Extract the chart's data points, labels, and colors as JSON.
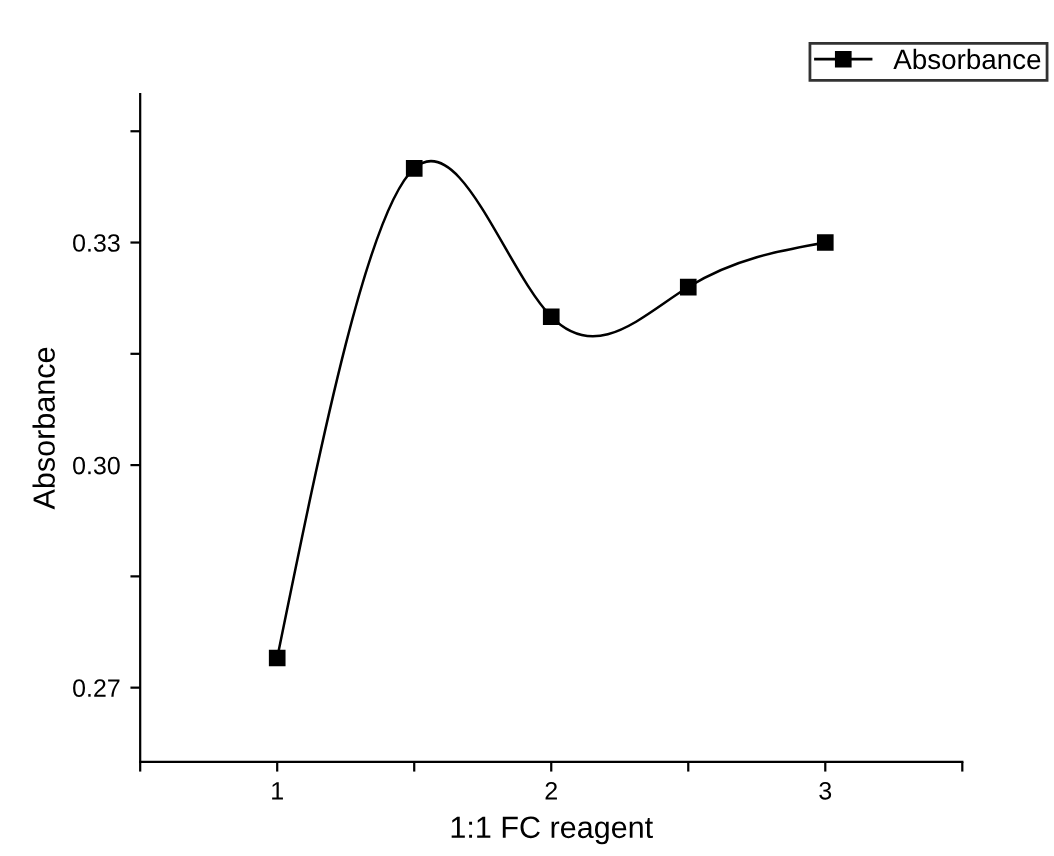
{
  "chart_data": {
    "type": "line",
    "xlabel": "1:1 FC reagent",
    "ylabel": "Absorbance",
    "x": [
      1,
      1.5,
      2,
      2.5,
      3
    ],
    "series": [
      {
        "name": "Absorbance",
        "color": "#000000",
        "values": [
          0.274,
          0.34,
          0.32,
          0.324,
          0.33
        ]
      }
    ],
    "xlim": [
      0.5,
      3.5
    ],
    "xticks": [
      {
        "value": 0.5,
        "label": null
      },
      1,
      {
        "value": 1.5,
        "label": null
      },
      2,
      {
        "value": 2.5,
        "label": null
      },
      3,
      {
        "value": 3.5,
        "label": null
      }
    ],
    "ylim": [
      0.26,
      0.35
    ],
    "yticks": [
      0.27,
      {
        "value": 0.285,
        "label": null
      },
      "0.30",
      {
        "value": 0.315,
        "label": null
      },
      0.33,
      {
        "value": 0.345,
        "label": null
      }
    ],
    "marker": "square",
    "line_style": "solid",
    "grid": false,
    "legend": "top right"
  }
}
